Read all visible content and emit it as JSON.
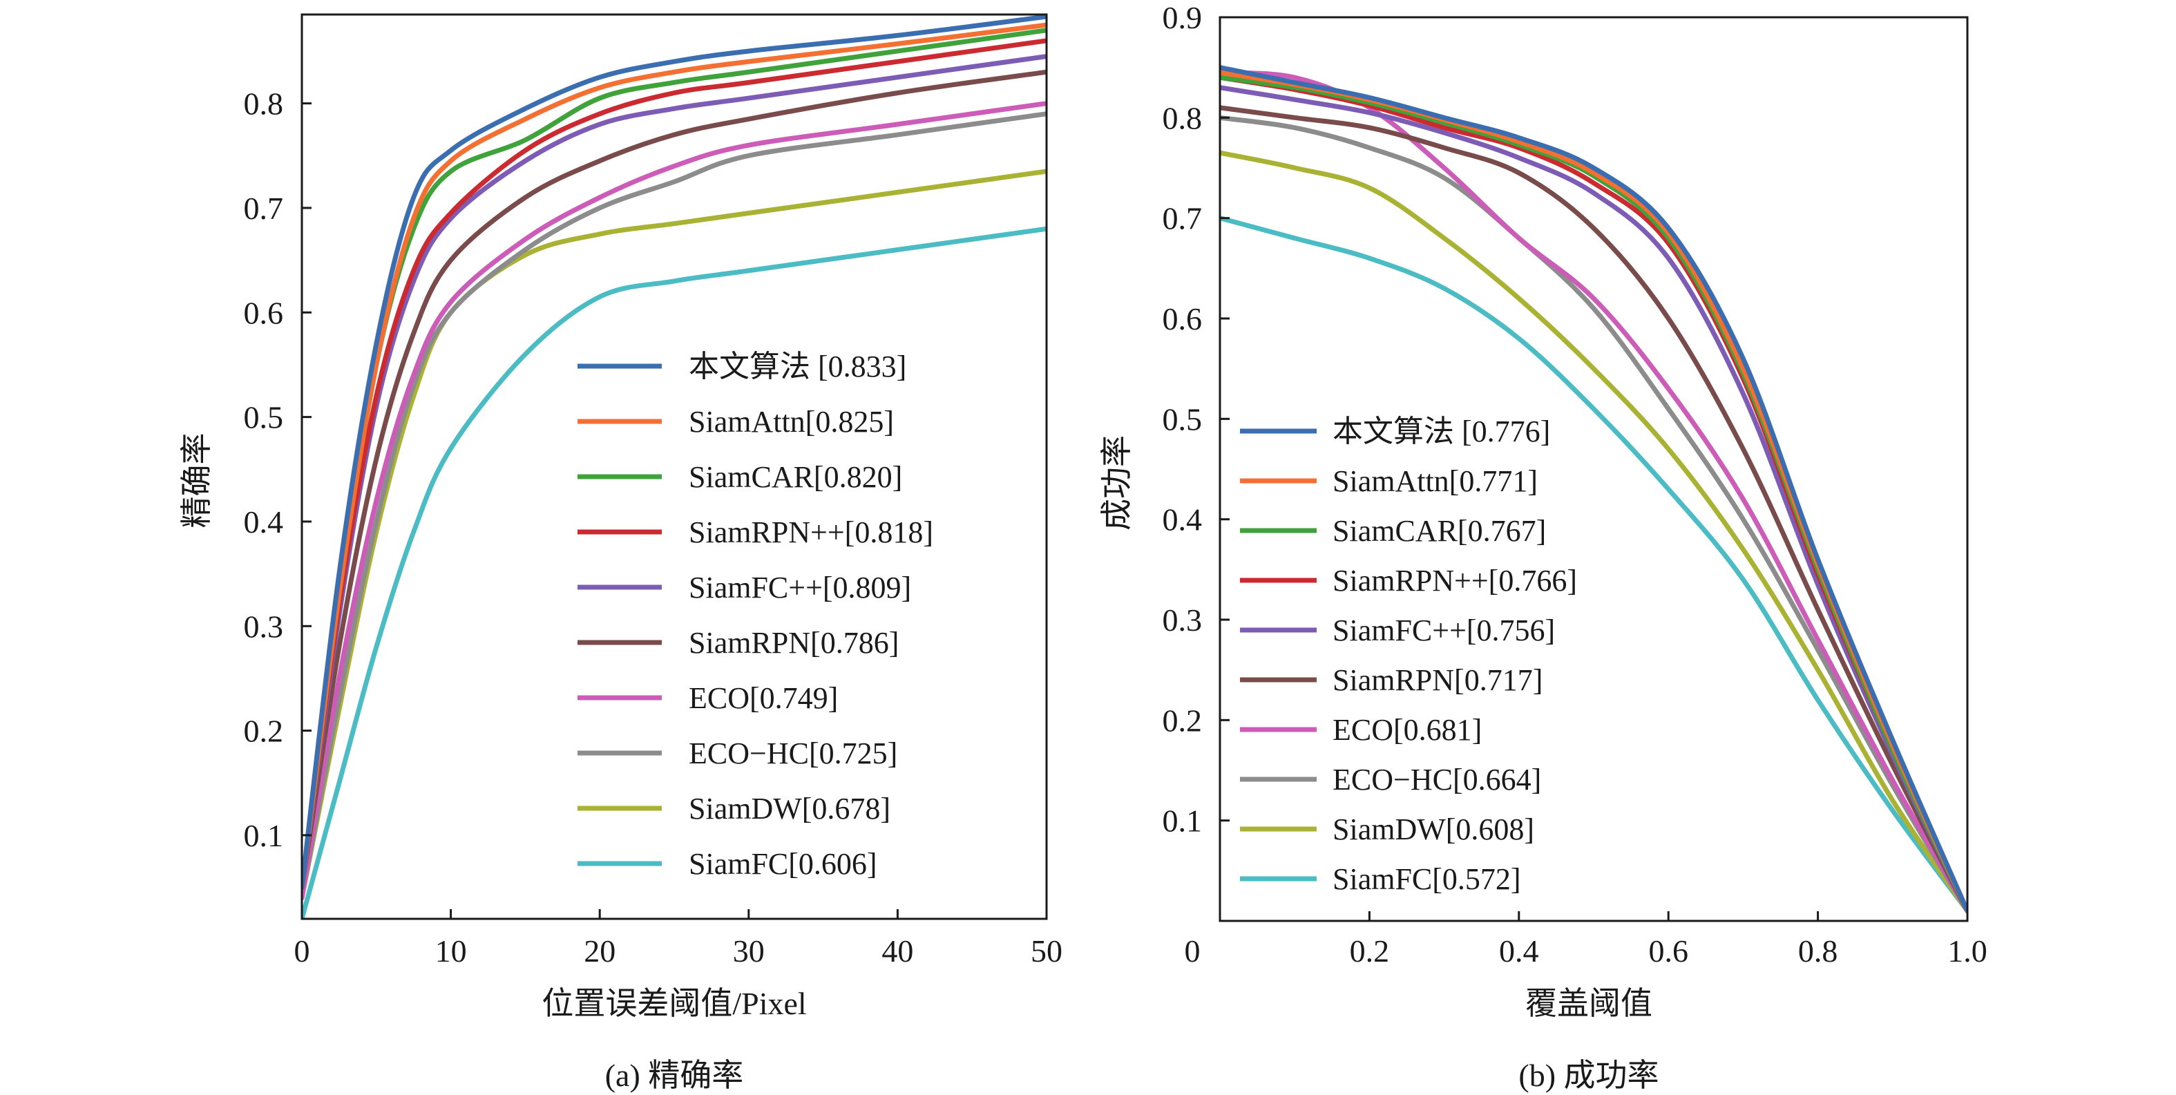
{
  "chart_data": [
    {
      "id": "precision",
      "type": "line",
      "caption": "(a) 精确率",
      "title": "",
      "xlabel": "位置误差阈值/Pixel",
      "ylabel": "精确率",
      "xlim": [
        0,
        50
      ],
      "ylim": [
        0.02,
        0.885
      ],
      "xticks": [
        0,
        10,
        20,
        30,
        40,
        50
      ],
      "xtick_labels": [
        "0",
        "10",
        "20",
        "30",
        "40",
        "50"
      ],
      "yticks": [
        0.1,
        0.2,
        0.3,
        0.4,
        0.5,
        0.6,
        0.7,
        0.8
      ],
      "ytick_labels": [
        "0.1",
        "0.2",
        "0.3",
        "0.4",
        "0.5",
        "0.6",
        "0.7",
        "0.8"
      ],
      "grid": false,
      "legend_position": "lower-right",
      "x": [
        0,
        2.5,
        5,
        7.5,
        10,
        15,
        20,
        25,
        30,
        40,
        50
      ],
      "series": [
        {
          "name": "本文算法 [0.833]",
          "color": "#3b6eb0",
          "values": [
            0.05,
            0.35,
            0.57,
            0.71,
            0.755,
            0.795,
            0.825,
            0.84,
            0.85,
            0.865,
            0.883
          ]
        },
        {
          "name": "SiamAttn[0.825]",
          "color": "#f37032",
          "values": [
            0.05,
            0.33,
            0.55,
            0.69,
            0.745,
            0.785,
            0.815,
            0.83,
            0.84,
            0.857,
            0.875
          ]
        },
        {
          "name": "SiamCAR[0.820]",
          "color": "#3fa23b",
          "values": [
            0.05,
            0.33,
            0.55,
            0.68,
            0.735,
            0.765,
            0.805,
            0.82,
            0.83,
            0.85,
            0.87
          ]
        },
        {
          "name": "SiamRPN++[0.818]",
          "color": "#cb2a30",
          "values": [
            0.05,
            0.32,
            0.52,
            0.64,
            0.695,
            0.755,
            0.79,
            0.81,
            0.82,
            0.84,
            0.86
          ]
        },
        {
          "name": "SiamFC++[0.809]",
          "color": "#7c5cb4",
          "values": [
            0.05,
            0.31,
            0.51,
            0.63,
            0.69,
            0.745,
            0.78,
            0.795,
            0.805,
            0.825,
            0.845
          ]
        },
        {
          "name": "SiamRPN[0.786]",
          "color": "#7a4b4b",
          "values": [
            0.05,
            0.28,
            0.46,
            0.58,
            0.65,
            0.71,
            0.745,
            0.77,
            0.785,
            0.81,
            0.83
          ]
        },
        {
          "name": "ECO[0.749]",
          "color": "#cc5cb7",
          "values": [
            0.04,
            0.25,
            0.42,
            0.54,
            0.61,
            0.67,
            0.71,
            0.74,
            0.76,
            0.78,
            0.8
          ]
        },
        {
          "name": "ECO−HC[0.725]",
          "color": "#8c8c8c",
          "values": [
            0.04,
            0.23,
            0.4,
            0.53,
            0.6,
            0.66,
            0.7,
            0.725,
            0.75,
            0.77,
            0.79
          ]
        },
        {
          "name": "SiamDW[0.678]",
          "color": "#a9b232",
          "values": [
            0.04,
            0.22,
            0.39,
            0.52,
            0.6,
            0.655,
            0.675,
            0.685,
            0.695,
            0.715,
            0.735
          ]
        },
        {
          "name": "SiamFC[0.606]",
          "color": "#4bbcc4",
          "values": [
            0.02,
            0.15,
            0.28,
            0.39,
            0.47,
            0.56,
            0.615,
            0.63,
            0.64,
            0.66,
            0.68
          ]
        }
      ]
    },
    {
      "id": "success",
      "type": "line",
      "caption": "(b) 成功率",
      "title": "",
      "xlabel": "覆盖阈值",
      "ylabel": "成功率",
      "xlim": [
        0,
        1.0
      ],
      "ylim": [
        0,
        0.9
      ],
      "xticks": [
        0,
        0.2,
        0.4,
        0.6,
        0.8,
        1.0
      ],
      "xtick_labels": [
        "0",
        "0.2",
        "0.4",
        "0.6",
        "0.8",
        "1.0"
      ],
      "yticks": [
        0.1,
        0.2,
        0.3,
        0.4,
        0.5,
        0.6,
        0.7,
        0.8,
        0.9
      ],
      "ytick_labels": [
        "0.1",
        "0.2",
        "0.3",
        "0.4",
        "0.5",
        "0.6",
        "0.7",
        "0.8",
        "0.9"
      ],
      "grid": false,
      "legend_position": "lower-left",
      "x": [
        0,
        0.1,
        0.2,
        0.3,
        0.4,
        0.5,
        0.6,
        0.7,
        0.8,
        0.9,
        1.0
      ],
      "series": [
        {
          "name": "本文算法 [0.776]",
          "color": "#3b6eb0",
          "values": [
            0.85,
            0.835,
            0.82,
            0.8,
            0.78,
            0.75,
            0.69,
            0.56,
            0.36,
            0.18,
            0.01
          ]
        },
        {
          "name": "SiamAttn[0.771]",
          "color": "#f37032",
          "values": [
            0.845,
            0.833,
            0.818,
            0.798,
            0.776,
            0.745,
            0.685,
            0.55,
            0.355,
            0.175,
            0.01
          ]
        },
        {
          "name": "SiamCAR[0.767]",
          "color": "#3fa23b",
          "values": [
            0.84,
            0.83,
            0.815,
            0.795,
            0.773,
            0.742,
            0.68,
            0.545,
            0.35,
            0.17,
            0.01
          ]
        },
        {
          "name": "SiamRPN++[0.766]",
          "color": "#cb2a30",
          "values": [
            0.84,
            0.828,
            0.812,
            0.79,
            0.77,
            0.735,
            0.675,
            0.54,
            0.345,
            0.17,
            0.01
          ]
        },
        {
          "name": "SiamFC++[0.756]",
          "color": "#7c5cb4",
          "values": [
            0.83,
            0.818,
            0.805,
            0.785,
            0.76,
            0.725,
            0.66,
            0.525,
            0.335,
            0.165,
            0.01
          ]
        },
        {
          "name": "SiamRPN[0.717]",
          "color": "#7a4b4b",
          "values": [
            0.81,
            0.8,
            0.79,
            0.77,
            0.745,
            0.69,
            0.6,
            0.47,
            0.31,
            0.155,
            0.01
          ]
        },
        {
          "name": "ECO[0.681]",
          "color": "#cc5cb7",
          "values": [
            0.845,
            0.84,
            0.81,
            0.75,
            0.68,
            0.62,
            0.53,
            0.42,
            0.28,
            0.14,
            0.01
          ]
        },
        {
          "name": "ECO−HC[0.664]",
          "color": "#8c8c8c",
          "values": [
            0.8,
            0.79,
            0.77,
            0.74,
            0.68,
            0.61,
            0.51,
            0.4,
            0.27,
            0.135,
            0.01
          ]
        },
        {
          "name": "SiamDW[0.608]",
          "color": "#a9b232",
          "values": [
            0.765,
            0.75,
            0.73,
            0.68,
            0.62,
            0.55,
            0.47,
            0.37,
            0.25,
            0.12,
            0.01
          ]
        },
        {
          "name": "SiamFC[0.572]",
          "color": "#4bbcc4",
          "values": [
            0.7,
            0.68,
            0.66,
            0.63,
            0.58,
            0.51,
            0.43,
            0.34,
            0.22,
            0.11,
            0.01
          ]
        }
      ]
    }
  ]
}
